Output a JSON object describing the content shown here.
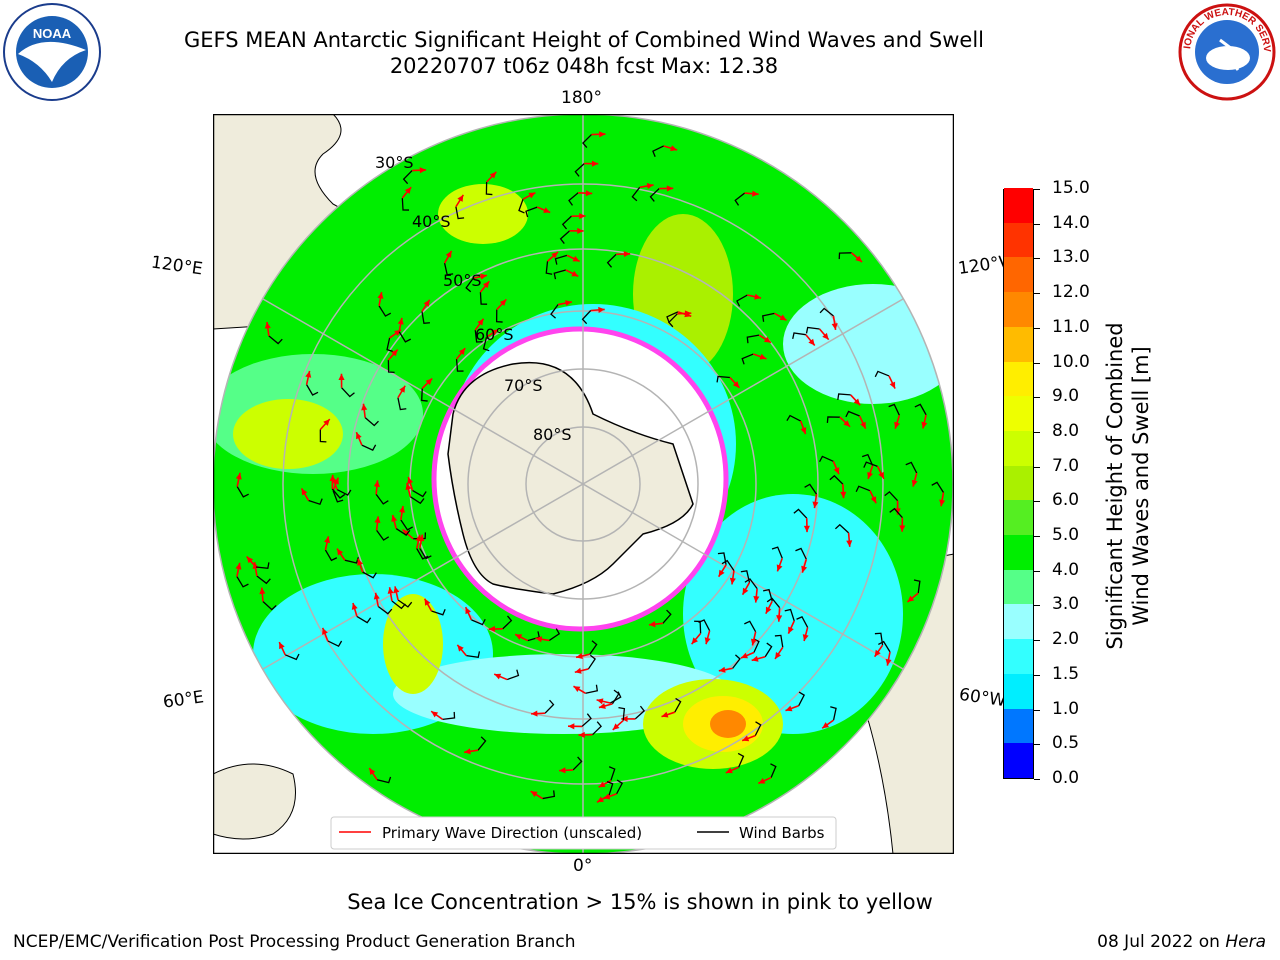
{
  "header": {
    "title_line1": "GEFS MEAN Antarctic Significant Height of Combined Wind Waves and Swell",
    "title_line2": "20220707 t06z 048h fcst   Max: 12.38"
  },
  "logos": {
    "left": "NOAA",
    "right_text": "NATIONAL WEATHER SERVICE"
  },
  "map": {
    "projection": "south-polar-stereographic",
    "lon_labels": {
      "top": "180°",
      "bottom": "0°",
      "upper_left": "120°E",
      "upper_right": "120°W",
      "lower_left": "60°E",
      "lower_right": "60°W"
    },
    "lat_labels": [
      "30°S",
      "40°S",
      "50°S",
      "60°S",
      "70°S",
      "80°S"
    ],
    "legend": {
      "wave": "Primary Wave Direction (unscaled)",
      "wind": "Wind Barbs"
    },
    "colors": {
      "land": "#efecdc",
      "ice_edge": "#ff44ee",
      "grid": "#b4b4b4",
      "arrow": "#ff0000"
    }
  },
  "colorbar": {
    "label_line1": "Significant Height of Combined",
    "label_line2": "Wind Waves and Swell [m]",
    "ticks": [
      "0.0",
      "0.5",
      "1.0",
      "1.5",
      "2.0",
      "3.0",
      "4.0",
      "5.0",
      "6.0",
      "7.0",
      "8.0",
      "9.0",
      "10.0",
      "11.0",
      "12.0",
      "13.0",
      "14.0",
      "15.0"
    ],
    "colors": [
      "#0000ff",
      "#0077ff",
      "#00eeff",
      "#33ffff",
      "#99ffff",
      "#55ff88",
      "#00ee00",
      "#55ee22",
      "#aaf000",
      "#ccff00",
      "#eeff00",
      "#ffee00",
      "#ffbb00",
      "#ff8800",
      "#ff6600",
      "#ff3300",
      "#ff0000"
    ]
  },
  "footer": {
    "ice_note": "Sea Ice Concentration > 15% is shown in pink to yellow",
    "credit": "NCEP/EMC/Verification Post Processing Product Generation Branch",
    "date": "08 Jul 2022 on",
    "host": "Hera"
  }
}
